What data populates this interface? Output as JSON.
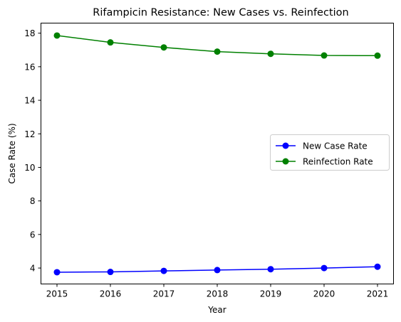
{
  "chart_data": {
    "type": "line",
    "title": "Rifampicin Resistance: New Cases vs. Reinfection",
    "xlabel": "Year",
    "ylabel": "Case Rate (%)",
    "x": [
      2015,
      2016,
      2017,
      2018,
      2019,
      2020,
      2021
    ],
    "xticks": [
      "2015",
      "2016",
      "2017",
      "2018",
      "2019",
      "2020",
      "2021"
    ],
    "yticks": [
      "4",
      "6",
      "8",
      "10",
      "12",
      "14",
      "16",
      "18"
    ],
    "ylim": [
      3.05,
      18.6
    ],
    "xlim": [
      2014.7,
      2021.3
    ],
    "grid": false,
    "legend_position": "center-right",
    "series": [
      {
        "name": "New Case Rate",
        "color": "#0000ff",
        "marker": "circle",
        "values": [
          3.75,
          3.77,
          3.83,
          3.88,
          3.93,
          4.0,
          4.08
        ]
      },
      {
        "name": "Reinfection Rate",
        "color": "#008000",
        "marker": "circle",
        "values": [
          17.86,
          17.45,
          17.15,
          16.9,
          16.77,
          16.67,
          16.66
        ]
      }
    ]
  }
}
